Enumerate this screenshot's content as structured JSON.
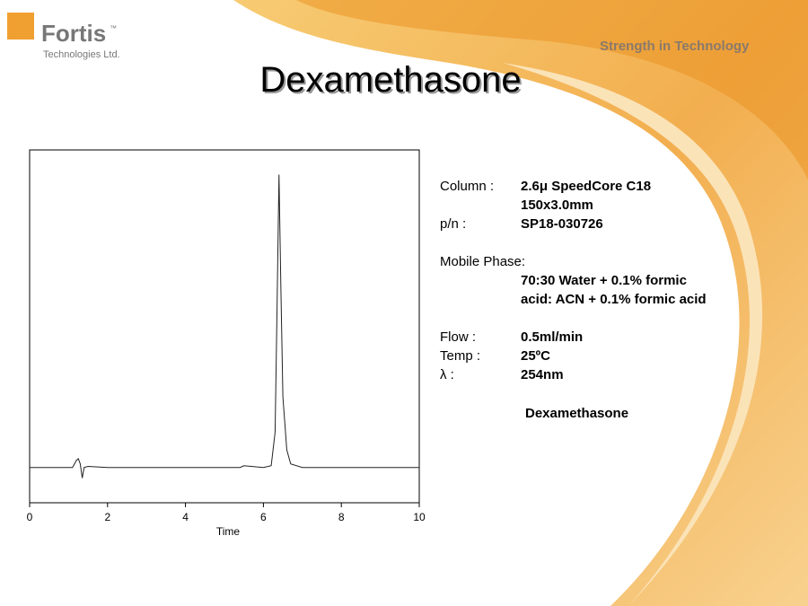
{
  "header": {
    "logo_name": "Fortis",
    "logo_tm": "™",
    "logo_sub": "Technologies Ltd.",
    "tagline": "Strength in Technology",
    "title": "Dexamethasone"
  },
  "chart_data": {
    "type": "line",
    "x_label": "Time",
    "x": [
      0,
      1.1,
      1.2,
      1.25,
      1.3,
      1.35,
      1.4,
      1.5,
      2,
      5.4,
      5.5,
      6,
      6.2,
      6.3,
      6.35,
      6.4,
      6.45,
      6.5,
      6.6,
      6.7,
      7,
      10
    ],
    "series": [
      {
        "color": "#222222",
        "values": [
          0,
          0,
          2,
          2.5,
          1,
          -3,
          0,
          0.3,
          0,
          0,
          0.5,
          0,
          0.5,
          10,
          45,
          83,
          50,
          20,
          5,
          1,
          0,
          0
        ]
      }
    ],
    "xlim": [
      0,
      10
    ],
    "xticks": [
      0,
      2,
      4,
      6,
      8,
      10
    ],
    "ylim": [
      -10,
      90
    ]
  },
  "method": {
    "column": {
      "label": "Column :",
      "lines": [
        "2.6μ SpeedCore C18",
        "150x3.0mm"
      ]
    },
    "pn": {
      "label": "p/n :",
      "value": "SP18-030726"
    },
    "mobile_phase": {
      "label": "Mobile Phase:",
      "lines": [
        "70:30 Water + 0.1% formic",
        "acid: ACN + 0.1% formic acid"
      ]
    },
    "flow": {
      "label": "Flow :",
      "value": "0.5ml/min"
    },
    "temp": {
      "label": "Temp :",
      "value": "25ºC"
    },
    "wavelength": {
      "label": "λ :",
      "value": "254nm"
    },
    "analyte": "Dexamethasone"
  }
}
